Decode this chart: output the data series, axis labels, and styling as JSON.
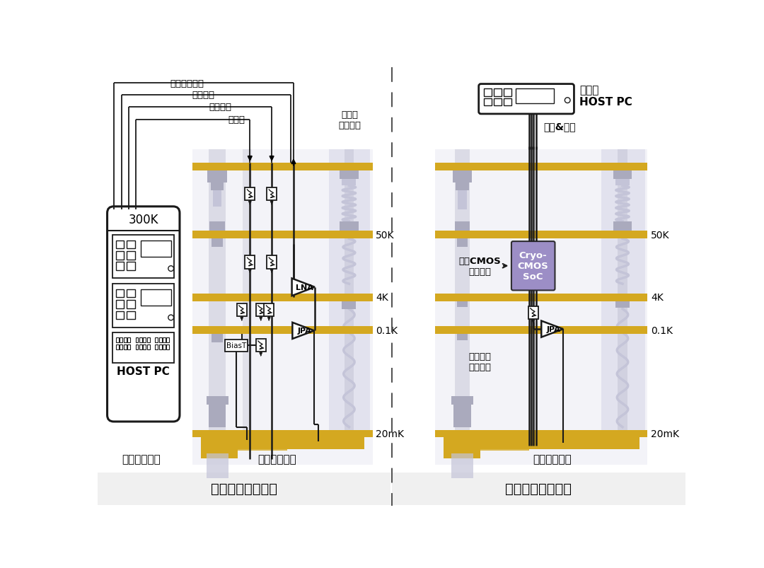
{
  "bg": "#ffffff",
  "gold": "#D4A820",
  "gray": "#AAAABD",
  "gray_light": "#C4C4D8",
  "gray_tube": "#B8B8CC",
  "black": "#1a1a1a",
  "purple": "#9080C0",
  "white": "#ffffff",
  "title_left": "常温量子测控系统",
  "title_right": "低温量子测控系统",
  "signals": [
    "色散反射测量",
    "读取微波",
    "微波脉冲",
    "门脉冲"
  ],
  "coax_label": "微同轴\n电缆阵列",
  "host_pc_right_top": "上位机",
  "host_pc_right_bot": "HOST PC",
  "comm": "通信&馈电",
  "cryo": "Cryo-\nCMOS\nSoC",
  "low_cmos": "低温CMOS\n测控芯片",
  "sim_signal": "模拟量子\n测控信号",
  "dev_label_left": "常温测控设备",
  "qubit_left": "量子比特阵列",
  "qubit_right": "量子比特阵列",
  "host300k": "300K",
  "host_pc_label": "HOST PC",
  "lna": "LNA",
  "jpa": "JPA",
  "biast": "BiasT",
  "temp_50k": "50K",
  "temp_4k": "4K",
  "temp_01k": "0.1K",
  "temp_20mk": "20mK"
}
